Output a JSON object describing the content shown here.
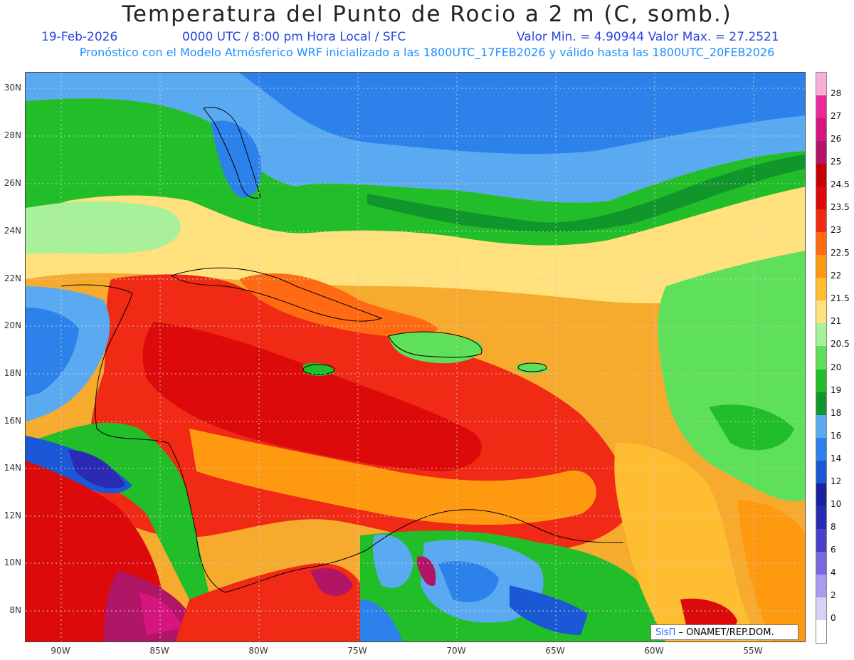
{
  "header": {
    "title": "Temperatura del Punto de Rocio a 2 m (C, somb.)",
    "date": "19-Feb-2026",
    "time": "0000 UTC / 8:00 pm Hora Local / SFC",
    "minmax": "Valor Min. = 4.90944  Valor Max. = 27.2521",
    "forecast": "Pronóstico con el Modelo Atmósferico WRF inicializado a las 1800UTC_17FEB2026 y válido hasta las  1800UTC_20FEB2026"
  },
  "axes": {
    "lat_labels": [
      "30N",
      "28N",
      "26N",
      "24N",
      "22N",
      "20N",
      "18N",
      "16N",
      "14N",
      "12N",
      "10N",
      "8N"
    ],
    "lon_labels": [
      "90W",
      "85W",
      "80W",
      "75W",
      "70W",
      "65W",
      "60W",
      "55W"
    ]
  },
  "colorbar": {
    "labels": [
      "28",
      "27",
      "26",
      "25",
      "24.5",
      "23.5",
      "23",
      "22.5",
      "22",
      "21.5",
      "21",
      "20.5",
      "20",
      "19",
      "18",
      "16",
      "14",
      "12",
      "10",
      "8",
      "6",
      "4",
      "2",
      "0"
    ],
    "colors": [
      "#f6b0d8",
      "#ea2a9c",
      "#d6157e",
      "#b01566",
      "#c40000",
      "#dc0a0a",
      "#f02a14",
      "#ff6a12",
      "#ff9a10",
      "#ffbe32",
      "#ffe27e",
      "#a8f09a",
      "#5ee05a",
      "#22be2a",
      "#10962a",
      "#5aaaf2",
      "#2c82ea",
      "#1a58d6",
      "#16229e",
      "#2a2ab4",
      "#4a40c8",
      "#7868de",
      "#a89cf0",
      "#d6d2f6",
      "#ffffff"
    ]
  },
  "credit": {
    "logo": "SisΠ",
    "text": " – ONAMET/REP.DOM."
  }
}
